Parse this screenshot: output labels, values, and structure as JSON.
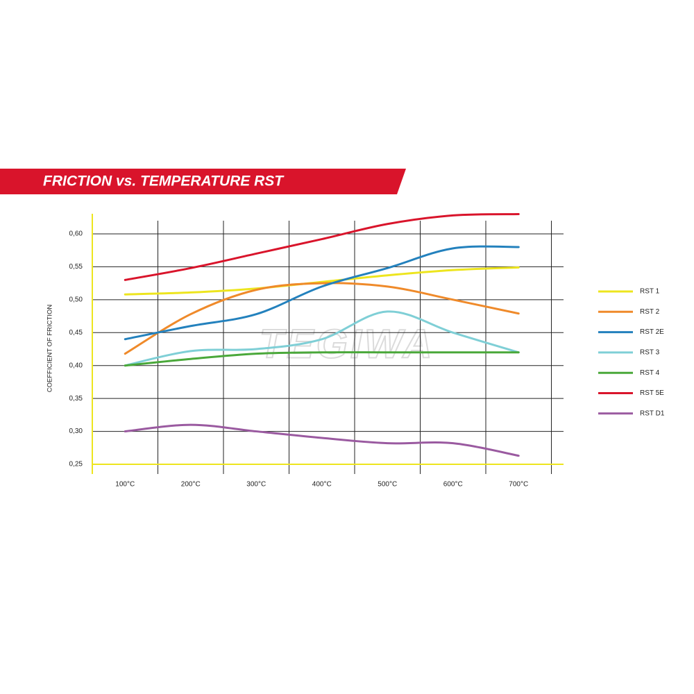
{
  "chart_data": {
    "type": "line",
    "title": "FRICTION vs. TEMPERATURE RST",
    "y_label": "COEFFICIENT OF FRICTION",
    "watermark": "TEGIWA",
    "categories": [
      "100°C",
      "200°C",
      "300°C",
      "400°C",
      "500°C",
      "600°C",
      "700°C"
    ],
    "ylim": [
      0.25,
      0.62
    ],
    "yticks": [
      {
        "value": 0.25,
        "label": "0,25"
      },
      {
        "value": 0.3,
        "label": "0,30"
      },
      {
        "value": 0.35,
        "label": "0,35"
      },
      {
        "value": 0.4,
        "label": "0,40"
      },
      {
        "value": 0.45,
        "label": "0,45"
      },
      {
        "value": 0.5,
        "label": "0,50"
      },
      {
        "value": 0.55,
        "label": "0,55"
      },
      {
        "value": 0.6,
        "label": "0,60"
      }
    ],
    "grid": true,
    "legend": "right",
    "series": [
      {
        "name": "RST 1",
        "color": "#ede51e",
        "values": [
          0.508,
          0.511,
          0.517,
          0.527,
          0.537,
          0.545,
          0.549
        ]
      },
      {
        "name": "RST 2",
        "color": "#ef8a2a",
        "values": [
          0.418,
          0.478,
          0.515,
          0.525,
          0.52,
          0.5,
          0.479
        ]
      },
      {
        "name": "RST 2E",
        "color": "#2381bd",
        "values": [
          0.44,
          0.46,
          0.478,
          0.52,
          0.548,
          0.578,
          0.58
        ]
      },
      {
        "name": "RST 3",
        "color": "#7fcfd6",
        "values": [
          0.4,
          0.422,
          0.425,
          0.44,
          0.482,
          0.45,
          0.42
        ]
      },
      {
        "name": "RST 4",
        "color": "#4aa83a",
        "values": [
          0.4,
          0.41,
          0.418,
          0.42,
          0.42,
          0.42,
          0.42
        ]
      },
      {
        "name": "RST 5E",
        "color": "#d9142b",
        "values": [
          0.53,
          0.548,
          0.57,
          0.592,
          0.615,
          0.628,
          0.63
        ]
      },
      {
        "name": "RST D1",
        "color": "#9a5aa0",
        "values": [
          0.3,
          0.31,
          0.3,
          0.29,
          0.282,
          0.282,
          0.263
        ]
      }
    ]
  }
}
